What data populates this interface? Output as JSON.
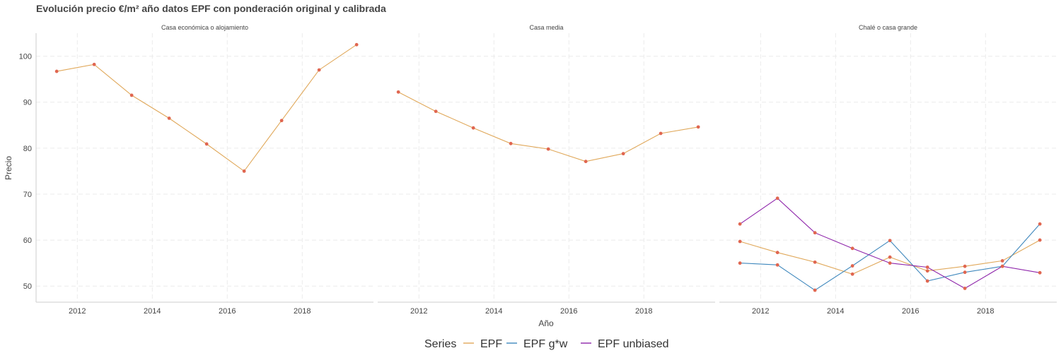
{
  "chart_data": {
    "type": "line",
    "title": "Evolución precio €/m² año datos EPF con ponderación original y calibrada",
    "xlabel": "Año",
    "ylabel": "Precio",
    "xlim": [
      2010.9,
      2019.9
    ],
    "ylim": [
      46.5,
      105
    ],
    "x_ticks": [
      2012,
      2014,
      2016,
      2018
    ],
    "y_ticks": [
      50,
      60,
      70,
      80,
      90,
      100
    ],
    "grid": true,
    "legend_position": "bottom",
    "legend_title": "Series",
    "point_color": "#e06650",
    "series_styles": [
      {
        "name": "EPF",
        "color": "#e0a85a"
      },
      {
        "name": "EPF g*w",
        "color": "#3f88bd"
      },
      {
        "name": "EPF unbiased",
        "color": "#8e24aa"
      }
    ],
    "panels": [
      {
        "label": "Casa económica o alojamiento",
        "series": [
          {
            "name": "EPF",
            "x": [
              2011.45,
              2012.45,
              2013.45,
              2014.45,
              2015.45,
              2016.45,
              2017.45,
              2018.45,
              2019.45
            ],
            "values": [
              96.7,
              98.2,
              91.5,
              86.5,
              80.9,
              75.0,
              86.0,
              97.0,
              102.5
            ]
          }
        ]
      },
      {
        "label": "Casa media",
        "series": [
          {
            "name": "EPF",
            "x": [
              2011.45,
              2012.45,
              2013.45,
              2014.45,
              2015.45,
              2016.45,
              2017.45,
              2018.45,
              2019.45
            ],
            "values": [
              92.2,
              88.0,
              84.4,
              81.0,
              79.8,
              77.1,
              78.8,
              83.2,
              84.6
            ]
          }
        ]
      },
      {
        "label": "Chalé o casa grande",
        "series": [
          {
            "name": "EPF",
            "x": [
              2011.45,
              2012.45,
              2013.45,
              2014.45,
              2015.45,
              2016.45,
              2017.45,
              2018.45,
              2019.45
            ],
            "values": [
              59.7,
              57.3,
              55.2,
              52.6,
              56.3,
              53.3,
              54.3,
              55.5,
              60.0
            ]
          },
          {
            "name": "EPF g*w",
            "x": [
              2011.45,
              2012.45,
              2013.45,
              2014.45,
              2015.45,
              2016.45,
              2017.45,
              2018.45,
              2019.45
            ],
            "values": [
              55.0,
              54.6,
              49.1,
              54.4,
              59.9,
              51.1,
              53.0,
              54.3,
              63.5
            ]
          },
          {
            "name": "EPF unbiased",
            "x": [
              2011.45,
              2012.45,
              2013.45,
              2014.45,
              2015.45,
              2016.45,
              2017.45,
              2018.45,
              2019.45
            ],
            "values": [
              63.5,
              69.1,
              61.6,
              58.2,
              55.0,
              54.1,
              49.5,
              54.3,
              52.9
            ]
          }
        ]
      }
    ]
  }
}
